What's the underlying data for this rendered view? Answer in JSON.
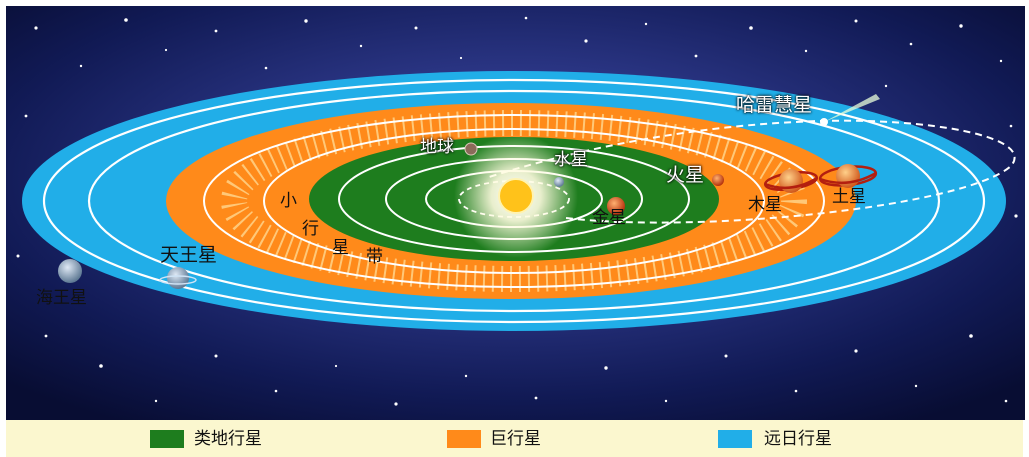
{
  "labels": {
    "halley": "哈雷慧星",
    "earth": "地球",
    "mercury": "水星",
    "mars": "火星",
    "venus": "金星",
    "jupiter": "木星",
    "saturn": "土星",
    "asteroid_1": "小",
    "asteroid_2": "行",
    "asteroid_3": "星",
    "asteroid_4": "带",
    "uranus": "天王星",
    "neptune": "海王星"
  },
  "legend": {
    "terrestrial": {
      "label": "类地行星",
      "color": "#1e7d1e"
    },
    "giant": {
      "label": "巨行星",
      "color": "#ff8a1a"
    },
    "outer": {
      "label": "远日行星",
      "color": "#21aee8"
    }
  },
  "colors": {
    "space": "#0b1242",
    "sun": "#ffc21a",
    "orbit_line": "#ffffff",
    "legend_background": "#fbf7cf"
  }
}
